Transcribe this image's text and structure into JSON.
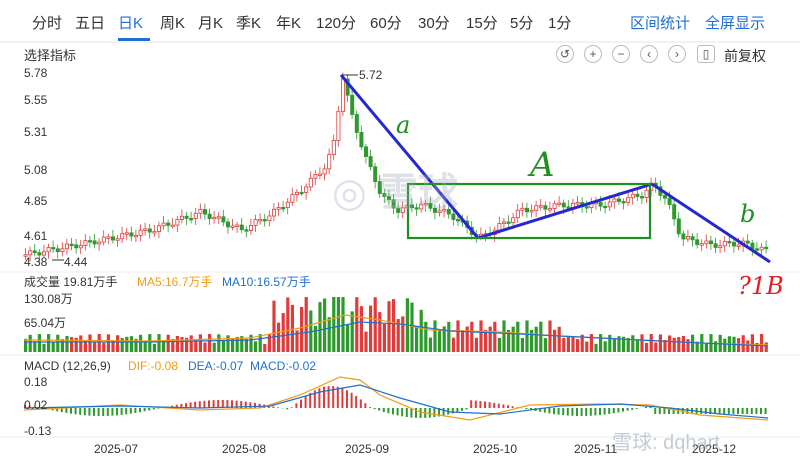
{
  "tabs": [
    {
      "label": "分时",
      "active": false
    },
    {
      "label": "五日",
      "active": false
    },
    {
      "label": "日K",
      "active": true
    },
    {
      "label": "周K",
      "active": false
    },
    {
      "label": "月K",
      "active": false
    },
    {
      "label": "季K",
      "active": false
    },
    {
      "label": "年K",
      "active": false
    },
    {
      "label": "120分",
      "active": false
    },
    {
      "label": "60分",
      "active": false
    },
    {
      "label": "30分",
      "active": false
    },
    {
      "label": "15分",
      "active": false
    },
    {
      "label": "5分",
      "active": false
    },
    {
      "label": "1分",
      "active": false
    }
  ],
  "toolbar": {
    "range_stats": "区间统计",
    "fullscreen": "全屏显示",
    "indicator_select": "选择指标",
    "adjust_mode": "前复权"
  },
  "price_axis": [
    "5.78",
    "5.55",
    "5.31",
    "5.08",
    "4.85",
    "4.61",
    "4.38"
  ],
  "price_annotations": {
    "high": "5.72",
    "low": "4.44"
  },
  "volume": {
    "label": "成交量 19.81万手",
    "ma5": "MA5:16.7万手",
    "ma10": "MA10:16.57万手",
    "axis": [
      "130.08万",
      "65.04万"
    ]
  },
  "macd": {
    "label": "MACD (12,26,9)",
    "dif": "DIF:-0.08",
    "dea": "DEA:-0.07",
    "macd": "MACD:-0.02",
    "axis": [
      "0.18",
      "0.02",
      "-0.13"
    ]
  },
  "x_axis": [
    "2025-07",
    "2025-08",
    "2025-09",
    "2025-10",
    "2025-11",
    "2025-12"
  ],
  "handwritten": {
    "a": "a",
    "A": "A",
    "b": "b",
    "note": "?1B"
  },
  "watermark": {
    "logo": "雪球",
    "bottom": "雪球: dqhart"
  },
  "colors": {
    "up": "#e03b3b",
    "down": "#2e9a2e",
    "accent": "#1f6fd1",
    "ma5": "#f39c12",
    "ma10": "#1f6fd1",
    "annotation": "#2727cf"
  }
}
